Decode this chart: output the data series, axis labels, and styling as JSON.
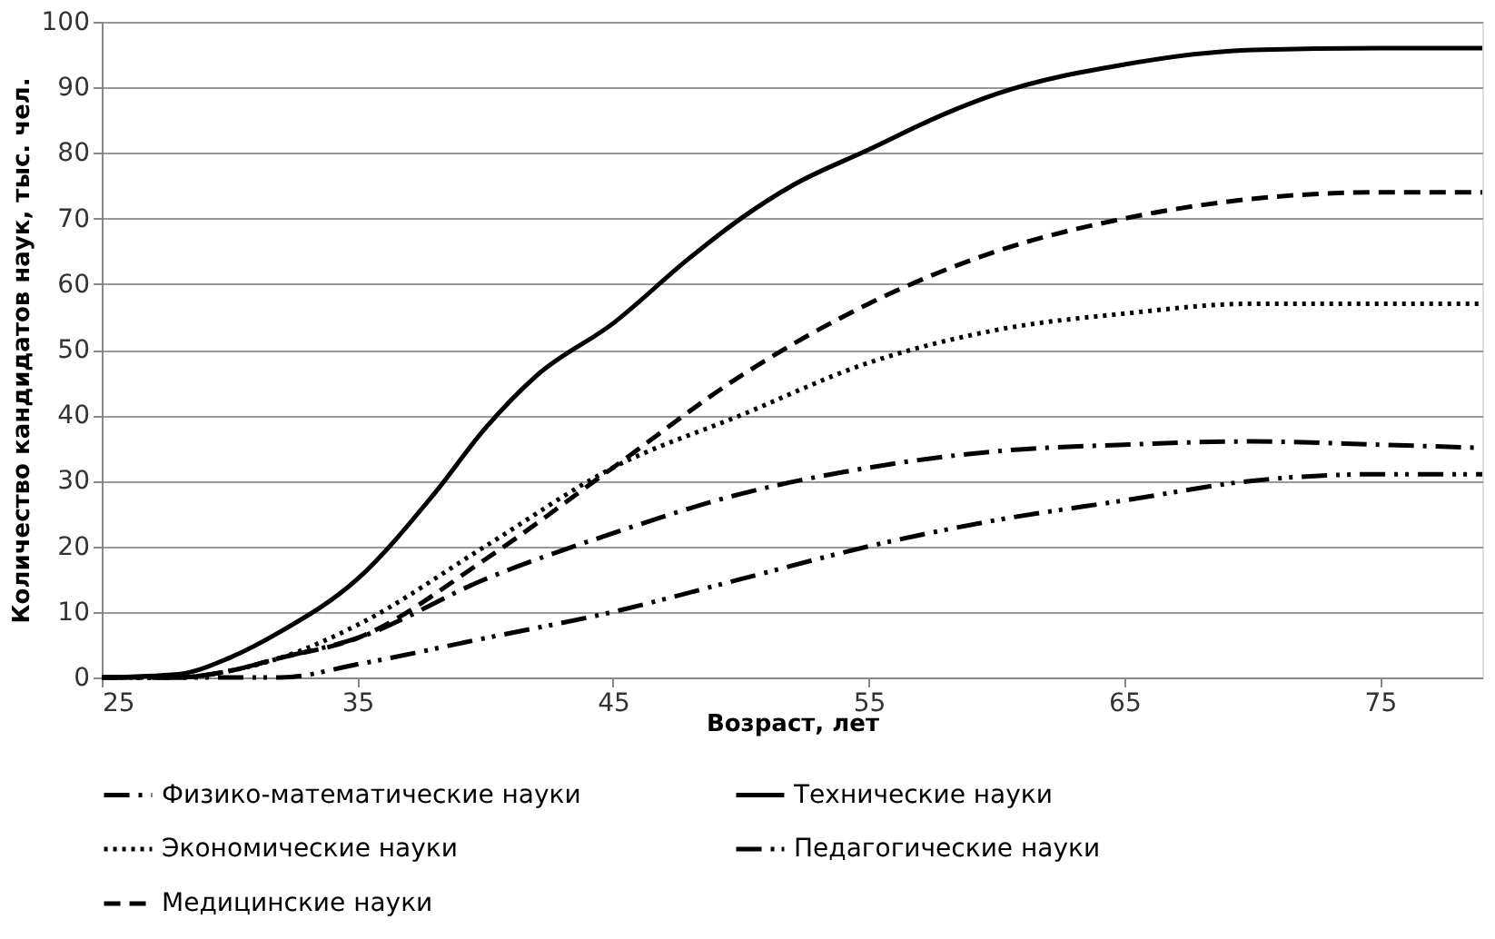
{
  "chart_data": {
    "type": "line",
    "xlabel": "Возраст, лет",
    "ylabel": "Количество кандидатов наук, тыс. чел.",
    "x": [
      25,
      28,
      30,
      32,
      35,
      40,
      45,
      50,
      55,
      60,
      65,
      70,
      75,
      79
    ],
    "xlim": [
      25,
      79
    ],
    "xticks": [
      25,
      35,
      45,
      55,
      65,
      75
    ],
    "ylim": [
      0,
      100
    ],
    "yticks": [
      0,
      10,
      20,
      30,
      40,
      50,
      60,
      70,
      80,
      90,
      100
    ],
    "grid": "y",
    "legend": "bottom",
    "marker": "none",
    "series": [
      {
        "name": "Физико-математические науки",
        "color": "#000000",
        "line_style": "dashdot",
        "values": [
          0,
          0,
          1,
          3,
          6,
          15,
          22,
          28,
          32,
          34.5,
          35.5,
          36,
          35.5,
          35
        ]
      },
      {
        "name": "Технические науки",
        "color": "#000000",
        "line_style": "solid",
        "x": [
          25,
          28,
          30,
          32,
          35,
          38,
          40,
          42,
          45,
          48,
          50,
          52,
          55,
          58,
          60,
          65,
          70,
          75,
          79
        ],
        "values": [
          0,
          0.5,
          3,
          7,
          15,
          28,
          38,
          46,
          54,
          64,
          70,
          75,
          80.5,
          86,
          89,
          93.5,
          95.7,
          96,
          96
        ]
      },
      {
        "name": "Экономические науки",
        "color": "#000000",
        "line_style": "dotted",
        "values": [
          0,
          0,
          1,
          3,
          8,
          20,
          32,
          40,
          48,
          53,
          55.5,
          57,
          57,
          57
        ]
      },
      {
        "name": "Педагогические науки",
        "color": "#000000",
        "line_style": "dashdotdot",
        "values": [
          0,
          0,
          0,
          0,
          2,
          6,
          10,
          15,
          20,
          24,
          27,
          30,
          31,
          31
        ]
      },
      {
        "name": "Медицинские науки",
        "color": "#000000",
        "line_style": "dashed",
        "values": [
          0,
          0,
          1,
          3,
          6,
          18,
          32,
          46,
          57,
          65,
          70,
          73,
          74,
          74
        ]
      }
    ]
  }
}
